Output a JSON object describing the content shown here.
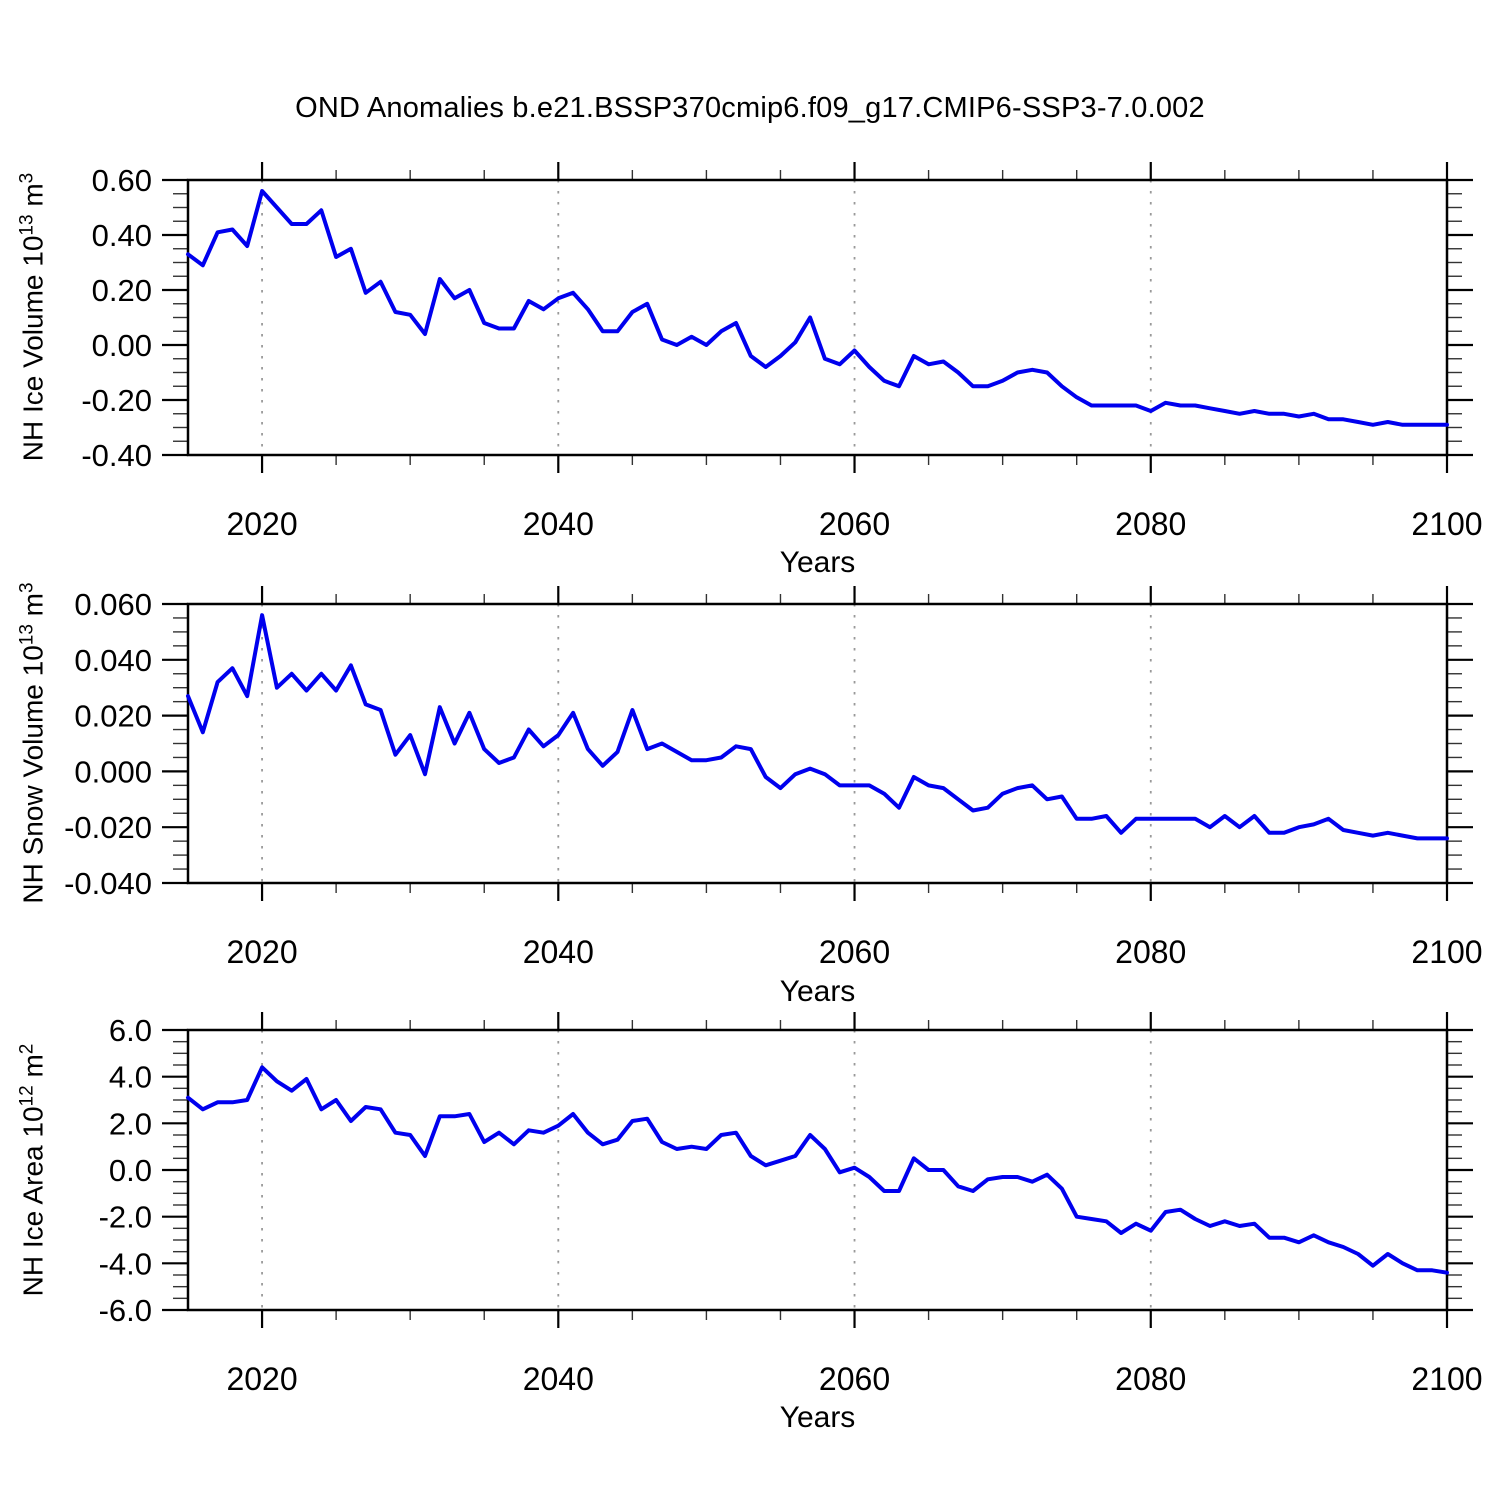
{
  "title": "OND Anomalies b.e21.BSSP370cmip6.f09_g17.CMIP6-SSP3-7.0.002",
  "colors": {
    "line": "#0000ee",
    "grid": "#999999",
    "axis": "#000000",
    "minor_tick": "#333333",
    "text": "#000000",
    "background": "#ffffff"
  },
  "chart_data": [
    {
      "type": "line",
      "title": "",
      "ylabel": {
        "base": "NH Ice Volume 10",
        "exp": "13",
        "unit": " m",
        "unit_exp": "3"
      },
      "xlabel": "Years",
      "xlim": [
        2015,
        2100
      ],
      "ylim": [
        -0.4,
        0.6
      ],
      "x_ticks": [
        2020,
        2040,
        2060,
        2080,
        2100
      ],
      "x_tick_labels": [
        "2020",
        "2040",
        "2060",
        "2080",
        "2100"
      ],
      "x_minor_step": 5,
      "grid_x": [
        2020,
        2040,
        2060,
        2080
      ],
      "y_ticks": [
        0.6,
        0.4,
        0.2,
        0.0,
        -0.2,
        -0.4
      ],
      "y_tick_labels": [
        "0.60",
        "0.40",
        "0.20",
        "0.00",
        "-0.20",
        "-0.40"
      ],
      "y_minor_step": 0.05,
      "legend": "none",
      "grid": "vertical-dashed",
      "x_start": 2015,
      "x_step": 1,
      "values": [
        0.33,
        0.29,
        0.41,
        0.42,
        0.36,
        0.56,
        0.5,
        0.44,
        0.44,
        0.49,
        0.32,
        0.35,
        0.19,
        0.23,
        0.12,
        0.11,
        0.04,
        0.24,
        0.17,
        0.2,
        0.08,
        0.06,
        0.06,
        0.16,
        0.13,
        0.17,
        0.19,
        0.13,
        0.05,
        0.05,
        0.12,
        0.15,
        0.02,
        0.0,
        0.03,
        0.0,
        0.05,
        0.08,
        -0.04,
        -0.08,
        -0.04,
        0.01,
        0.1,
        -0.05,
        -0.07,
        -0.02,
        -0.08,
        -0.13,
        -0.15,
        -0.04,
        -0.07,
        -0.06,
        -0.1,
        -0.15,
        -0.15,
        -0.13,
        -0.1,
        -0.09,
        -0.1,
        -0.15,
        -0.19,
        -0.22,
        -0.22,
        -0.22,
        -0.22,
        -0.24,
        -0.21,
        -0.22,
        -0.22,
        -0.23,
        -0.24,
        -0.25,
        -0.24,
        -0.25,
        -0.25,
        -0.26,
        -0.25,
        -0.27,
        -0.27,
        -0.28,
        -0.29,
        -0.28,
        -0.29,
        -0.29,
        -0.29,
        -0.29
      ]
    },
    {
      "type": "line",
      "title": "",
      "ylabel": {
        "base": "NH Snow Volume 10",
        "exp": "13",
        "unit": " m",
        "unit_exp": "3"
      },
      "xlabel": "Years",
      "xlim": [
        2015,
        2100
      ],
      "ylim": [
        -0.04,
        0.06
      ],
      "x_ticks": [
        2020,
        2040,
        2060,
        2080,
        2100
      ],
      "x_tick_labels": [
        "2020",
        "2040",
        "2060",
        "2080",
        "2100"
      ],
      "x_minor_step": 5,
      "grid_x": [
        2020,
        2040,
        2060,
        2080
      ],
      "y_ticks": [
        0.06,
        0.04,
        0.02,
        0.0,
        -0.02,
        -0.04
      ],
      "y_tick_labels": [
        "0.060",
        "0.040",
        "0.020",
        "0.000",
        "-0.020",
        "-0.040"
      ],
      "y_minor_step": 0.005,
      "legend": "none",
      "grid": "vertical-dashed",
      "x_start": 2015,
      "x_step": 1,
      "values": [
        0.027,
        0.014,
        0.032,
        0.037,
        0.027,
        0.056,
        0.03,
        0.035,
        0.029,
        0.035,
        0.029,
        0.038,
        0.024,
        0.022,
        0.006,
        0.013,
        -0.001,
        0.023,
        0.01,
        0.021,
        0.008,
        0.003,
        0.005,
        0.015,
        0.009,
        0.013,
        0.021,
        0.008,
        0.002,
        0.007,
        0.022,
        0.008,
        0.01,
        0.007,
        0.004,
        0.004,
        0.005,
        0.009,
        0.008,
        -0.002,
        -0.006,
        -0.001,
        0.001,
        -0.001,
        -0.005,
        -0.005,
        -0.005,
        -0.008,
        -0.013,
        -0.002,
        -0.005,
        -0.006,
        -0.01,
        -0.014,
        -0.013,
        -0.008,
        -0.006,
        -0.005,
        -0.01,
        -0.009,
        -0.017,
        -0.017,
        -0.016,
        -0.022,
        -0.017,
        -0.017,
        -0.017,
        -0.017,
        -0.017,
        -0.02,
        -0.016,
        -0.02,
        -0.016,
        -0.022,
        -0.022,
        -0.02,
        -0.019,
        -0.017,
        -0.021,
        -0.022,
        -0.023,
        -0.022,
        -0.023,
        -0.024,
        -0.024,
        -0.024
      ]
    },
    {
      "type": "line",
      "title": "",
      "ylabel": {
        "base": "NH Ice Area 10",
        "exp": "12",
        "unit": " m",
        "unit_exp": "2"
      },
      "xlabel": "Years",
      "xlim": [
        2015,
        2100
      ],
      "ylim": [
        -6.0,
        6.0
      ],
      "x_ticks": [
        2020,
        2040,
        2060,
        2080,
        2100
      ],
      "x_tick_labels": [
        "2020",
        "2040",
        "2060",
        "2080",
        "2100"
      ],
      "x_minor_step": 5,
      "grid_x": [
        2020,
        2040,
        2060,
        2080
      ],
      "y_ticks": [
        6.0,
        4.0,
        2.0,
        0.0,
        -2.0,
        -4.0,
        -6.0
      ],
      "y_tick_labels": [
        "6.0",
        "4.0",
        "2.0",
        "0.0",
        "-2.0",
        "-4.0",
        "-6.0"
      ],
      "y_minor_step": 0.5,
      "legend": "none",
      "grid": "vertical-dashed",
      "x_start": 2015,
      "x_step": 1,
      "values": [
        3.1,
        2.6,
        2.9,
        2.9,
        3.0,
        4.4,
        3.8,
        3.4,
        3.9,
        2.6,
        3.0,
        2.1,
        2.7,
        2.6,
        1.6,
        1.5,
        0.6,
        2.3,
        2.3,
        2.4,
        1.2,
        1.6,
        1.1,
        1.7,
        1.6,
        1.9,
        2.4,
        1.6,
        1.1,
        1.3,
        2.1,
        2.2,
        1.2,
        0.9,
        1.0,
        0.9,
        1.5,
        1.6,
        0.6,
        0.2,
        0.4,
        0.6,
        1.5,
        0.9,
        -0.1,
        0.1,
        -0.3,
        -0.9,
        -0.9,
        0.5,
        0.0,
        0.0,
        -0.7,
        -0.9,
        -0.4,
        -0.3,
        -0.3,
        -0.5,
        -0.2,
        -0.8,
        -2.0,
        -2.1,
        -2.2,
        -2.7,
        -2.3,
        -2.6,
        -1.8,
        -1.7,
        -2.1,
        -2.4,
        -2.2,
        -2.4,
        -2.3,
        -2.9,
        -2.9,
        -3.1,
        -2.8,
        -3.1,
        -3.3,
        -3.6,
        -4.1,
        -3.6,
        -4.0,
        -4.3,
        -4.3,
        -4.4
      ]
    }
  ]
}
